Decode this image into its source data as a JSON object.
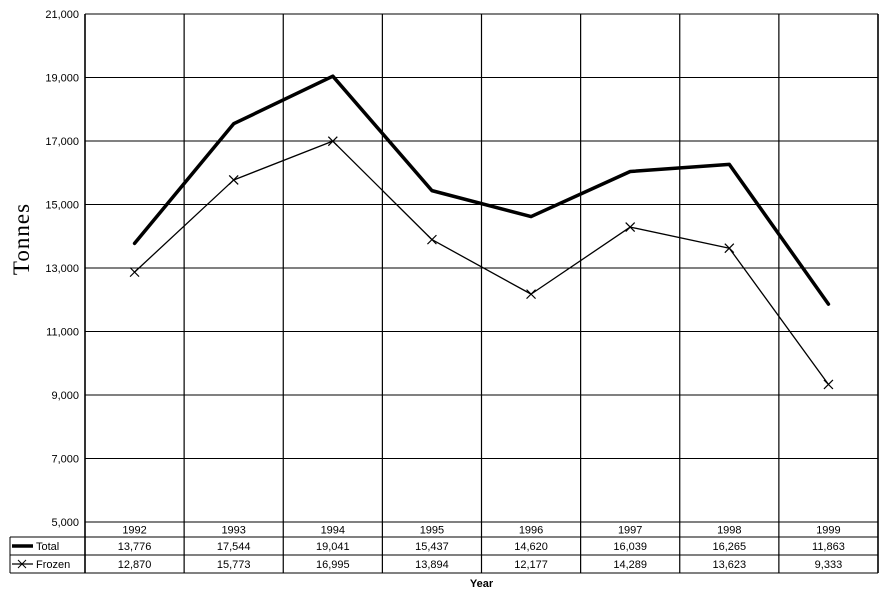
{
  "chart_data": {
    "type": "line",
    "title": "",
    "xlabel": "Year",
    "ylabel": "Tonnes",
    "ylim": [
      5000,
      21000
    ],
    "ytick_step": 2000,
    "grid": true,
    "legend_position": "bottom-table",
    "background_color": "#ffffff",
    "line_color": "#000000",
    "categories": [
      "1992",
      "1993",
      "1994",
      "1995",
      "1996",
      "1997",
      "1998",
      "1999"
    ],
    "series": [
      {
        "name": "Total",
        "values": [
          13776,
          17544,
          19041,
          15437,
          14620,
          16039,
          16265,
          11863
        ],
        "style": "thick-solid",
        "marker": "none"
      },
      {
        "name": "Frozen",
        "values": [
          12870,
          15773,
          16995,
          13894,
          12177,
          14289,
          13623,
          9333
        ],
        "style": "thin-solid",
        "marker": "x"
      }
    ]
  }
}
